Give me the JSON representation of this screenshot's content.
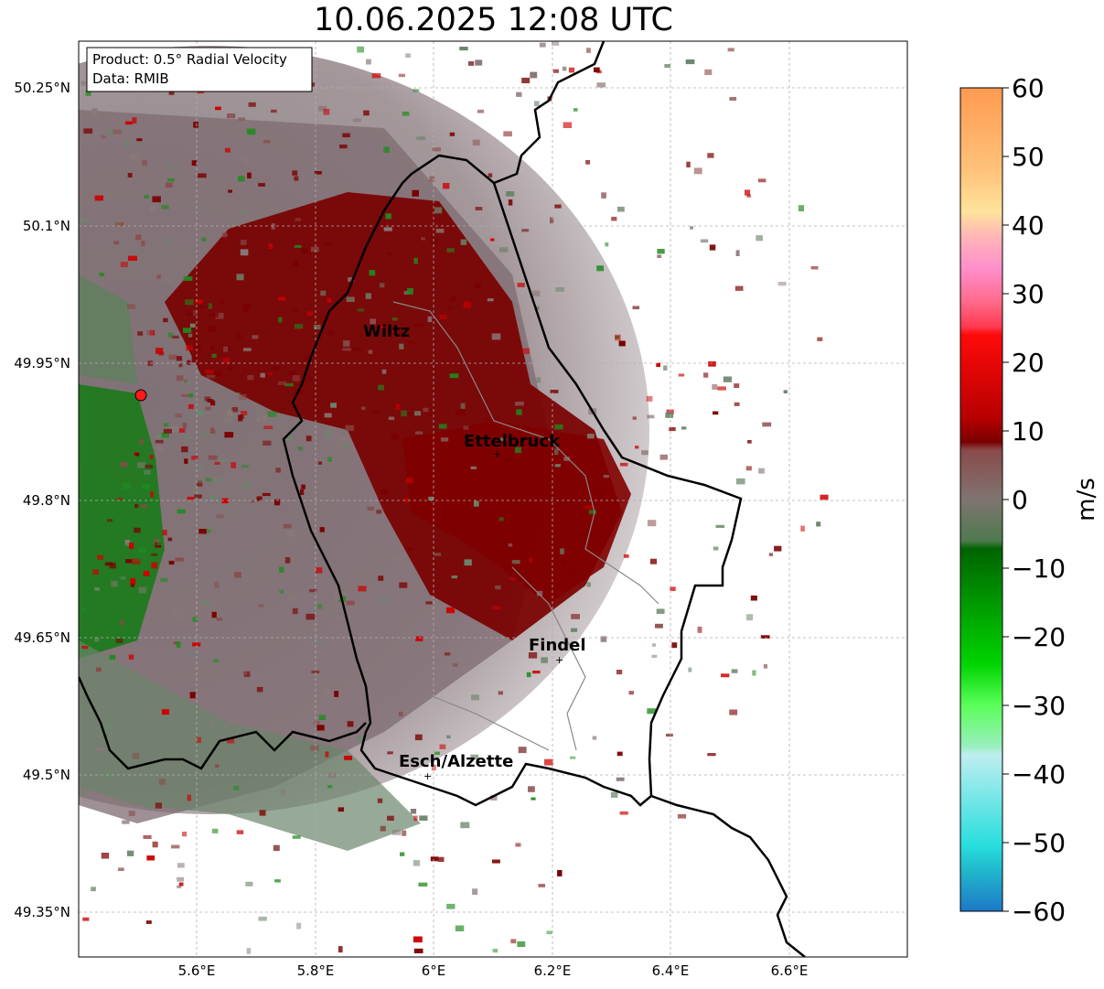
{
  "title": "10.06.2025 12:08 UTC",
  "info_box": {
    "product": "Product: 0.5° Radial Velocity",
    "data": "Data: RMIB"
  },
  "lat_ticks": [
    "50.25°N",
    "50.1°N",
    "49.95°N",
    "49.8°N",
    "49.65°N",
    "49.5°N",
    "49.35°N"
  ],
  "lon_ticks": [
    "5.6°E",
    "5.8°E",
    "6°E",
    "6.2°E",
    "6.4°E",
    "6.6°E"
  ],
  "places": [
    {
      "name": "Wiltz"
    },
    {
      "name": "Ettelbruck"
    },
    {
      "name": "Findel"
    },
    {
      "name": "Esch/Alzette"
    }
  ],
  "colorbar": {
    "label": "m/s",
    "ticks": [
      "60",
      "50",
      "40",
      "30",
      "20",
      "10",
      "0",
      "−10",
      "−20",
      "−30",
      "−40",
      "−50",
      "−60"
    ],
    "range": [
      -60,
      60
    ]
  },
  "colors": {
    "outward": "#7a0000",
    "inward": "#1f8a1f",
    "near_zero": "#8a7878",
    "radar_marker": "#ff1a1a",
    "border": "#000000"
  }
}
